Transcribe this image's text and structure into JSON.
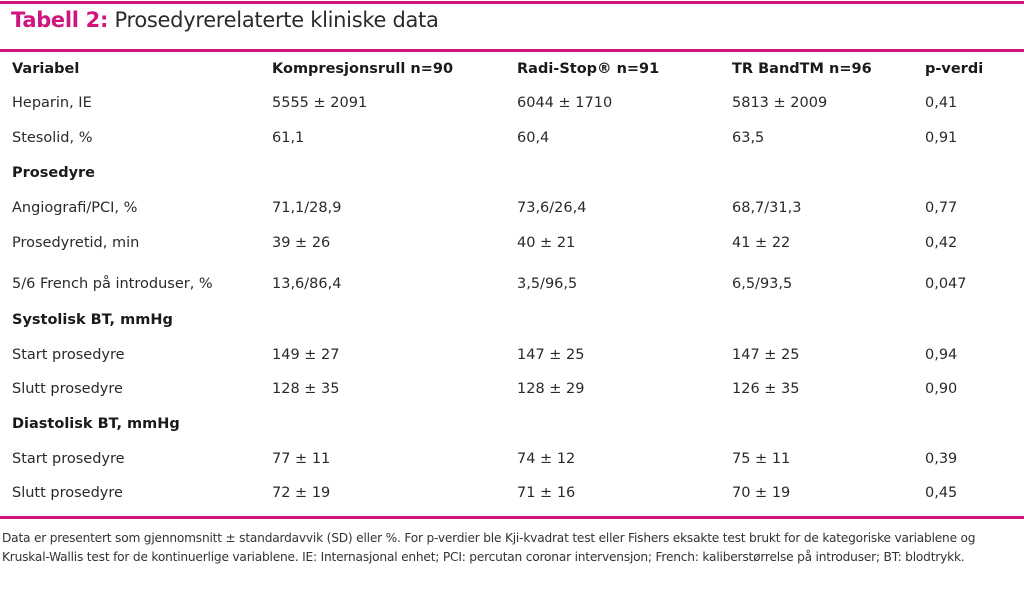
{
  "title": {
    "label": "Tabell 2:",
    "text": "Prosedyrerelaterte kliniske data"
  },
  "colors": {
    "accent": "#d0157c"
  },
  "table": {
    "headers": [
      "Variabel",
      "Kompresjonsrull n=90",
      "Radi-Stop® n=91",
      "TR BandTM n=96",
      "p-verdi"
    ],
    "rows": [
      {
        "type": "data",
        "cells": [
          "Heparin, IE",
          "5555 ± 2091",
          "6044 ± 1710",
          "5813 ± 2009",
          "0,41"
        ]
      },
      {
        "type": "data",
        "cells": [
          "Stesolid, %",
          "61,1",
          "60,4",
          "63,5",
          "0,91"
        ]
      },
      {
        "type": "section",
        "cells": [
          "Prosedyre"
        ]
      },
      {
        "type": "data",
        "cells": [
          "Angiografi/PCI, %",
          "71,1/28,9",
          "73,6/26,4",
          "68,7/31,3",
          "0,77"
        ]
      },
      {
        "type": "data",
        "cells": [
          "Prosedyretid, min",
          "39 ± 26",
          "40 ± 21",
          "41 ± 22",
          "0,42"
        ]
      },
      {
        "type": "data",
        "cells": [
          "5/6 French på introduser, %",
          "13,6/86,4",
          "3,5/96,5",
          "6,5/93,5",
          "0,047"
        ]
      },
      {
        "type": "section",
        "cells": [
          "Systolisk BT, mmHg"
        ]
      },
      {
        "type": "data",
        "cells": [
          "Start prosedyre",
          "149 ± 27",
          "147 ± 25",
          "147 ± 25",
          "0,94"
        ]
      },
      {
        "type": "data",
        "cells": [
          "Slutt prosedyre",
          "128 ± 35",
          "128 ± 29",
          "126 ± 35",
          "0,90"
        ]
      },
      {
        "type": "section",
        "cells": [
          "Diastolisk BT, mmHg"
        ]
      },
      {
        "type": "data",
        "cells": [
          "Start prosedyre",
          " 77 ± 11",
          "74 ± 12",
          "75 ± 11",
          "0,39"
        ]
      },
      {
        "type": "data",
        "cells": [
          "Slutt prosedyre",
          " 72 ± 19",
          "71 ± 16",
          "70 ± 19",
          "0,45"
        ]
      }
    ]
  },
  "note": "Data er presentert som gjennomsnitt ± standardavvik (SD) eller %. For p-verdier ble Kji-kvadrat test eller Fishers eksakte test brukt for de kategoriske variablene og Kruskal-Wallis test for de kontinuerlige variablene. IE: Internasjonal enhet; PCI: percutan coronar intervensjon; French: kaliberstørrelse på introduser; BT: blodtrykk."
}
